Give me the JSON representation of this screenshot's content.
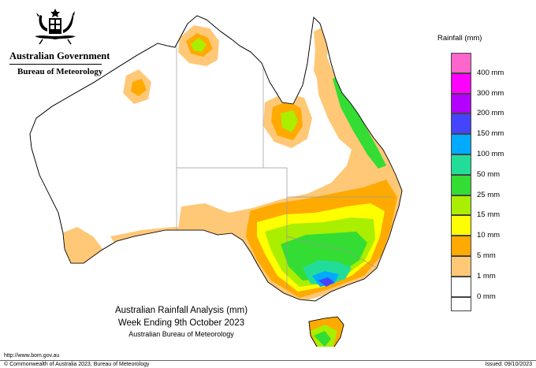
{
  "header": {
    "government": "Australian Government",
    "bureau": "Bureau of Meteorology",
    "crest_icon": "coat-of-arms-icon"
  },
  "map": {
    "title_line1": "Australian Rainfall Analysis (mm)",
    "title_line2": "Week Ending 9th October 2023",
    "title_line3": "Australian Bureau of Meteorology",
    "outline_color": "#000000",
    "border_color": "#999999"
  },
  "legend": {
    "title": "Rainfall (mm)",
    "items": [
      {
        "label": "",
        "color": "#ff66cc"
      },
      {
        "label": "400 mm",
        "color": "#ff00ff"
      },
      {
        "label": "300 mm",
        "color": "#b300ff"
      },
      {
        "label": "200 mm",
        "color": "#4444ff"
      },
      {
        "label": "150 mm",
        "color": "#00aaff"
      },
      {
        "label": "100 mm",
        "color": "#22dd99"
      },
      {
        "label": "50 mm",
        "color": "#33dd33"
      },
      {
        "label": "25 mm",
        "color": "#aaee00"
      },
      {
        "label": "15 mm",
        "color": "#ffff00"
      },
      {
        "label": "10 mm",
        "color": "#ffaa00"
      },
      {
        "label": "5 mm",
        "color": "#ffc877"
      },
      {
        "label": "1 mm",
        "color": "#ffffff"
      },
      {
        "label": "0 mm",
        "color": "#ffffff"
      }
    ]
  },
  "footer": {
    "url": "http://www.bom.gov.au",
    "copyright": "© Commonwealth of Australia 2023, Bureau of Meteorology",
    "issued": "Issued: 09/10/2023"
  }
}
